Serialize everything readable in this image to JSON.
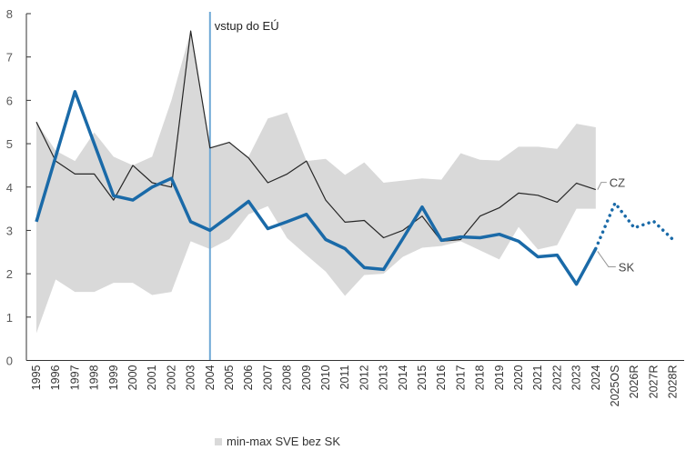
{
  "chart_data": {
    "type": "line",
    "title": "",
    "xlabel": "",
    "ylabel": "",
    "ylim": [
      0,
      8
    ],
    "yticks": [
      "0",
      "1",
      "2",
      "3",
      "4",
      "5",
      "6",
      "7",
      "8"
    ],
    "grid": false,
    "categories": [
      "1995",
      "1996",
      "1997",
      "1998",
      "1999",
      "2000",
      "2001",
      "2002",
      "2003",
      "2004",
      "2005",
      "2006",
      "2007",
      "2008",
      "2009",
      "2010",
      "2011",
      "2012",
      "2013",
      "2014",
      "2015",
      "2016",
      "2017",
      "2018",
      "2019",
      "2020",
      "2021",
      "2022",
      "2023",
      "2024",
      "2025OS",
      "2026R",
      "2027R",
      "2028R"
    ],
    "band": {
      "name": "min-max SVE bez SK",
      "color": "#d9d9d9",
      "min": [
        0.63,
        1.87,
        1.58,
        1.58,
        1.79,
        1.79,
        1.51,
        1.58,
        2.75,
        2.57,
        2.8,
        3.37,
        3.56,
        2.82,
        2.43,
        2.05,
        1.49,
        1.97,
        2.0,
        2.39,
        2.6,
        2.64,
        2.75,
        2.54,
        2.33,
        3.08,
        2.56,
        2.66,
        3.5,
        3.5,
        null,
        null,
        null,
        null
      ],
      "max": [
        5.5,
        4.84,
        4.6,
        5.26,
        4.7,
        4.5,
        4.7,
        6.0,
        7.6,
        4.9,
        5.03,
        4.7,
        5.58,
        5.72,
        4.6,
        4.65,
        4.28,
        4.57,
        4.1,
        4.15,
        4.2,
        4.17,
        4.78,
        4.63,
        4.61,
        4.93,
        4.93,
        4.88,
        5.46,
        5.38,
        null,
        null,
        null,
        null
      ]
    },
    "series": [
      {
        "name": "CZ",
        "color": "#262626",
        "values": [
          5.5,
          4.6,
          4.3,
          4.3,
          3.7,
          4.5,
          4.1,
          4.0,
          7.6,
          4.9,
          5.03,
          4.67,
          4.1,
          4.3,
          4.6,
          3.7,
          3.19,
          3.23,
          2.83,
          3.0,
          3.33,
          2.75,
          2.79,
          3.33,
          3.52,
          3.86,
          3.81,
          3.65,
          4.09,
          3.94,
          null,
          null,
          null,
          null
        ]
      },
      {
        "name": "SK",
        "color": "#1a6aa8",
        "values": [
          3.2,
          4.7,
          6.2,
          5.0,
          3.8,
          3.7,
          4.0,
          4.2,
          3.2,
          3.0,
          3.33,
          3.67,
          3.04,
          3.2,
          3.37,
          2.79,
          2.58,
          2.14,
          2.1,
          2.81,
          3.54,
          2.77,
          2.85,
          2.83,
          2.91,
          2.75,
          2.39,
          2.43,
          1.76,
          2.58,
          null,
          null,
          null,
          null
        ]
      },
      {
        "name": "SK forecast",
        "color": "#1a6aa8",
        "style": "dotted",
        "values": [
          null,
          null,
          null,
          null,
          null,
          null,
          null,
          null,
          null,
          null,
          null,
          null,
          null,
          null,
          null,
          null,
          null,
          null,
          null,
          null,
          null,
          null,
          null,
          null,
          null,
          null,
          null,
          null,
          null,
          2.58,
          3.63,
          3.06,
          3.21,
          2.79
        ]
      }
    ],
    "annotations": [
      {
        "text": "vstup do EÚ",
        "at": "2004",
        "color": "#6fa8d6"
      }
    ],
    "series_labels": {
      "cz": "CZ",
      "sk": "SK"
    },
    "legend": {
      "position": "bottom",
      "items": [
        "min-max SVE bez SK"
      ]
    }
  }
}
